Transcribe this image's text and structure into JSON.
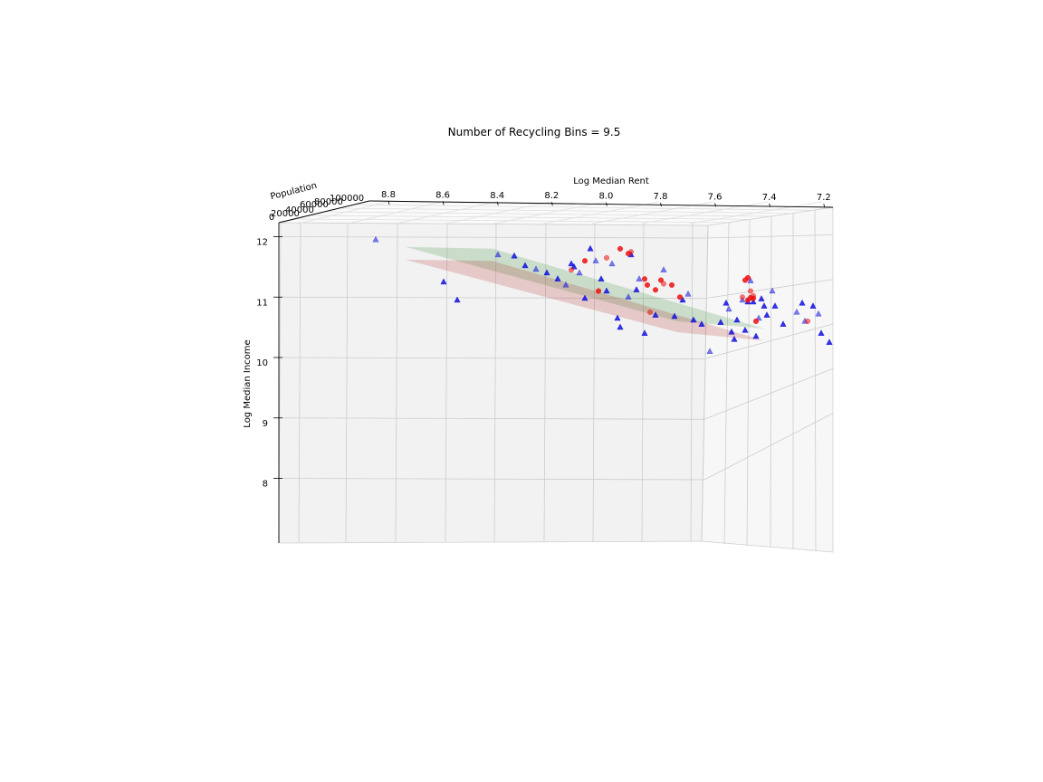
{
  "chart_data": {
    "type": "scatter",
    "title": "Number of Recycling Bins = 9.5",
    "xlabel": "Log Median Rent",
    "ylabel": "Log Median Income",
    "zlabel": "Population",
    "x_ticks": [
      "8.8",
      "8.6",
      "8.4",
      "8.2",
      "8.0",
      "7.8",
      "7.6",
      "7.4",
      "7.2"
    ],
    "x_tick_values": [
      8.8,
      8.6,
      8.4,
      8.2,
      8.0,
      7.8,
      7.6,
      7.4,
      7.2
    ],
    "y_ticks": [
      "8",
      "9",
      "10",
      "11",
      "12"
    ],
    "y_tick_values": [
      8,
      9,
      10,
      11,
      12
    ],
    "z_ticks": [
      "0",
      "20000",
      "40000",
      "60000",
      "80000",
      "100000"
    ],
    "xlim": [
      7.16,
      8.98
    ],
    "ylim": [
      6.9,
      12.1
    ],
    "grid": true,
    "planes": [
      {
        "color": "#2e8b2e",
        "alpha": 0.2,
        "corners": [
          [
            8.74,
            11.83
          ],
          [
            8.42,
            11.8
          ],
          [
            7.42,
            10.48
          ],
          [
            7.74,
            10.6
          ]
        ]
      },
      {
        "color": "#b22222",
        "alpha": 0.2,
        "corners": [
          [
            8.74,
            11.62
          ],
          [
            8.42,
            11.6
          ],
          [
            7.42,
            10.28
          ],
          [
            7.74,
            10.42
          ]
        ]
      }
    ],
    "series": [
      {
        "marker": "triangle",
        "color": "#1010dd",
        "points": [
          [
            8.85,
            11.95
          ],
          [
            8.6,
            11.25
          ],
          [
            8.55,
            10.95
          ],
          [
            8.4,
            11.7
          ],
          [
            8.34,
            11.68
          ],
          [
            8.3,
            11.52
          ],
          [
            8.26,
            11.46
          ],
          [
            8.22,
            11.4
          ],
          [
            8.18,
            11.3
          ],
          [
            8.15,
            11.2
          ],
          [
            8.13,
            11.55
          ],
          [
            8.12,
            11.5
          ],
          [
            8.1,
            11.4
          ],
          [
            8.08,
            10.98
          ],
          [
            8.06,
            11.8
          ],
          [
            8.04,
            11.6
          ],
          [
            8.02,
            11.3
          ],
          [
            8.0,
            11.1
          ],
          [
            7.98,
            11.55
          ],
          [
            7.96,
            10.65
          ],
          [
            7.95,
            10.5
          ],
          [
            7.92,
            11.0
          ],
          [
            7.91,
            11.7
          ],
          [
            7.89,
            11.12
          ],
          [
            7.88,
            11.3
          ],
          [
            7.86,
            10.4
          ],
          [
            7.82,
            10.7
          ],
          [
            7.79,
            11.45
          ],
          [
            7.75,
            10.68
          ],
          [
            7.72,
            10.95
          ],
          [
            7.7,
            11.05
          ],
          [
            7.68,
            10.62
          ],
          [
            7.65,
            10.55
          ],
          [
            7.62,
            10.1
          ],
          [
            7.58,
            10.58
          ],
          [
            7.56,
            10.9
          ],
          [
            7.55,
            10.8
          ],
          [
            7.53,
            10.3
          ],
          [
            7.52,
            10.62
          ],
          [
            7.5,
            10.95
          ],
          [
            7.49,
            10.45
          ],
          [
            7.48,
            10.92
          ],
          [
            7.47,
            11.27
          ],
          [
            7.46,
            10.92
          ],
          [
            7.45,
            10.35
          ],
          [
            7.44,
            10.65
          ],
          [
            7.42,
            10.85
          ],
          [
            7.41,
            10.7
          ],
          [
            7.39,
            11.1
          ],
          [
            7.38,
            10.85
          ],
          [
            7.35,
            10.55
          ],
          [
            7.3,
            10.75
          ],
          [
            7.28,
            10.9
          ],
          [
            7.24,
            10.85
          ],
          [
            7.22,
            10.72
          ],
          [
            7.21,
            10.4
          ],
          [
            7.18,
            10.25
          ],
          [
            7.27,
            10.6
          ],
          [
            7.43,
            10.97
          ],
          [
            7.54,
            10.42
          ]
        ]
      },
      {
        "marker": "circle",
        "color": "#ee1111",
        "points": [
          [
            8.13,
            11.45
          ],
          [
            8.08,
            11.6
          ],
          [
            8.03,
            11.1
          ],
          [
            8.0,
            11.65
          ],
          [
            7.95,
            11.8
          ],
          [
            7.92,
            11.72
          ],
          [
            7.91,
            11.75
          ],
          [
            7.86,
            11.3
          ],
          [
            7.85,
            11.2
          ],
          [
            7.84,
            10.75
          ],
          [
            7.82,
            11.12
          ],
          [
            7.8,
            11.28
          ],
          [
            7.79,
            11.22
          ],
          [
            7.76,
            11.2
          ],
          [
            7.73,
            11.0
          ],
          [
            7.5,
            11.0
          ],
          [
            7.49,
            11.28
          ],
          [
            7.48,
            11.32
          ],
          [
            7.47,
            11.1
          ],
          [
            7.46,
            10.98
          ],
          [
            7.45,
            10.6
          ],
          [
            7.26,
            10.6
          ],
          [
            7.47,
            10.99
          ],
          [
            7.48,
            10.95
          ],
          [
            7.46,
            11.02
          ]
        ]
      }
    ]
  }
}
